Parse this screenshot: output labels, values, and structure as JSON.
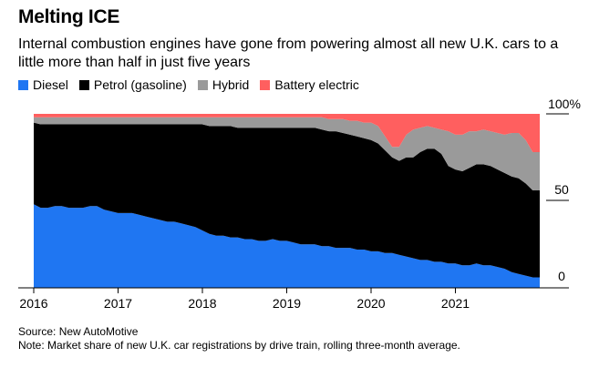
{
  "chart_data": {
    "type": "area",
    "stacked": true,
    "title": "Melting ICE",
    "subtitle": "Internal combustion engines have gone from powering almost all new U.K. cars to a little more than half in just five years",
    "x": [
      2016.0,
      2016.083,
      2016.167,
      2016.25,
      2016.333,
      2016.417,
      2016.5,
      2016.583,
      2016.667,
      2016.75,
      2016.833,
      2016.917,
      2017.0,
      2017.083,
      2017.167,
      2017.25,
      2017.333,
      2017.417,
      2017.5,
      2017.583,
      2017.667,
      2017.75,
      2017.833,
      2017.917,
      2018.0,
      2018.083,
      2018.167,
      2018.25,
      2018.333,
      2018.417,
      2018.5,
      2018.583,
      2018.667,
      2018.75,
      2018.833,
      2018.917,
      2019.0,
      2019.083,
      2019.167,
      2019.25,
      2019.333,
      2019.417,
      2019.5,
      2019.583,
      2019.667,
      2019.75,
      2019.833,
      2019.917,
      2020.0,
      2020.083,
      2020.167,
      2020.25,
      2020.333,
      2020.417,
      2020.5,
      2020.583,
      2020.667,
      2020.75,
      2020.833,
      2020.917,
      2021.0,
      2021.083,
      2021.167,
      2021.25,
      2021.333,
      2021.417,
      2021.5,
      2021.583,
      2021.667,
      2021.75,
      2021.833,
      2021.917
    ],
    "series": [
      {
        "name": "Diesel",
        "color": "#1f76f2",
        "values": [
          48,
          46,
          46,
          47,
          47,
          46,
          46,
          46,
          47,
          47,
          45,
          44,
          43,
          43,
          43,
          42,
          41,
          40,
          39,
          38,
          38,
          37,
          36,
          35,
          33,
          31,
          30,
          30,
          29,
          29,
          28,
          28,
          27,
          27,
          28,
          27,
          27,
          26,
          25,
          25,
          25,
          24,
          24,
          23,
          23,
          23,
          22,
          22,
          21,
          21,
          20,
          20,
          19,
          18,
          17,
          16,
          16,
          15,
          15,
          14,
          14,
          13,
          13,
          14,
          13,
          13,
          12,
          11,
          9,
          8,
          7,
          6
        ]
      },
      {
        "name": "Petrol (gasoline)",
        "color": "#000000",
        "values": [
          47,
          48,
          48,
          47,
          47,
          48,
          48,
          48,
          47,
          47,
          49,
          50,
          51,
          51,
          51,
          52,
          53,
          54,
          55,
          56,
          56,
          57,
          58,
          59,
          61,
          62,
          63,
          63,
          64,
          63,
          64,
          64,
          65,
          65,
          64,
          65,
          65,
          66,
          67,
          67,
          67,
          67,
          66,
          67,
          66,
          65,
          65,
          64,
          64,
          62,
          59,
          55,
          54,
          57,
          58,
          62,
          64,
          65,
          62,
          56,
          54,
          54,
          56,
          57,
          58,
          57,
          56,
          55,
          55,
          55,
          53,
          50
        ]
      },
      {
        "name": "Hybrid",
        "color": "#9a9a9a",
        "values": [
          3,
          4,
          4,
          4,
          4,
          4,
          4,
          4,
          4,
          4,
          4,
          4,
          4,
          4,
          4,
          4,
          4,
          4,
          4,
          4,
          4,
          4,
          4,
          4,
          4,
          5,
          5,
          5,
          5,
          6,
          6,
          6,
          6,
          6,
          6,
          6,
          6,
          6,
          6,
          6,
          6,
          7,
          7,
          7,
          8,
          8,
          9,
          9,
          10,
          10,
          8,
          6,
          8,
          13,
          16,
          14,
          13,
          12,
          14,
          20,
          20,
          21,
          21,
          19,
          20,
          20,
          21,
          22,
          25,
          26,
          25,
          22
        ]
      },
      {
        "name": "Battery electric",
        "color": "#ff5f5f",
        "values": [
          2,
          2,
          2,
          2,
          2,
          2,
          2,
          2,
          2,
          2,
          2,
          2,
          2,
          2,
          2,
          2,
          2,
          2,
          2,
          2,
          2,
          2,
          2,
          2,
          2,
          2,
          2,
          2,
          2,
          2,
          2,
          2,
          2,
          2,
          2,
          2,
          2,
          2,
          2,
          2,
          2,
          2,
          3,
          3,
          3,
          4,
          4,
          5,
          5,
          7,
          13,
          19,
          19,
          12,
          9,
          8,
          7,
          8,
          9,
          10,
          12,
          12,
          10,
          10,
          9,
          10,
          11,
          12,
          11,
          11,
          15,
          22
        ]
      }
    ],
    "x_ticks": [
      "2016",
      "2017",
      "2018",
      "2019",
      "2020",
      "2021"
    ],
    "y_ticks": [
      "0",
      "50",
      "100%"
    ],
    "ylim": [
      0,
      100
    ]
  },
  "footer": {
    "source": "Source: New AutoMotive",
    "note": "Note: Market share of new U.K. car registrations by drive train, rolling three-month average."
  }
}
